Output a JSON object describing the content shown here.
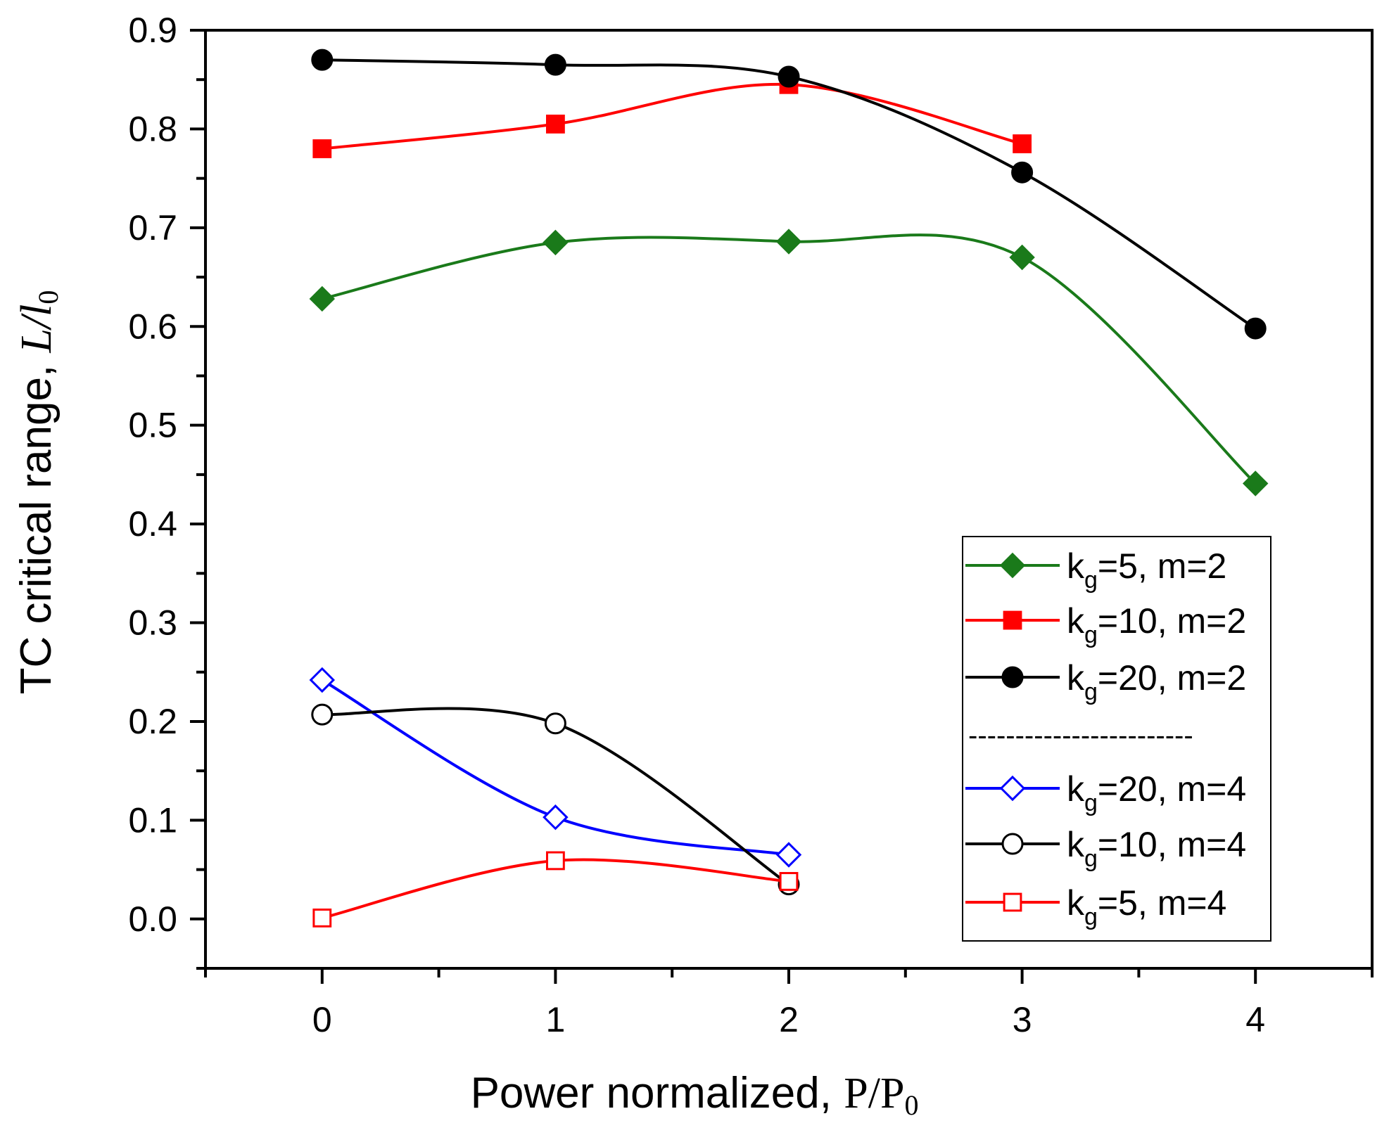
{
  "chart_data": {
    "type": "line",
    "xlabel_prefix": "Power normalized, ",
    "xlabel_var": "P/P",
    "xlabel_sub": "0",
    "ylabel_prefix": "TC critical range, ",
    "ylabel_var": "L/l",
    "ylabel_sub": "0",
    "xlim": [
      -0.5,
      4.5
    ],
    "ylim": [
      -0.05,
      0.9
    ],
    "xticks": [
      "0",
      "1",
      "2",
      "3",
      "4"
    ],
    "yticks": [
      "0.0",
      "0.1",
      "0.2",
      "0.3",
      "0.4",
      "0.5",
      "0.6",
      "0.7",
      "0.8",
      "0.9"
    ],
    "legend_position": "bottom-right",
    "legend_separator": "------------------------",
    "series": [
      {
        "name": "kg=5, m=2",
        "label_k": "k",
        "label_sub": "g",
        "label_rest": "=5, m=2",
        "color": "#1a7a1a",
        "marker": "diamond",
        "filled": true,
        "x": [
          0,
          1,
          2,
          3,
          4
        ],
        "y": [
          0.628,
          0.685,
          0.686,
          0.67,
          0.441
        ]
      },
      {
        "name": "kg=10, m=2",
        "label_k": "k",
        "label_sub": "g",
        "label_rest": "=10, m=2",
        "color": "#ff0000",
        "marker": "square",
        "filled": true,
        "x": [
          0,
          1,
          2,
          3
        ],
        "y": [
          0.78,
          0.805,
          0.845,
          0.785
        ]
      },
      {
        "name": "kg=20, m=2",
        "label_k": "k",
        "label_sub": "g",
        "label_rest": "=20, m=2",
        "color": "#000000",
        "marker": "circle",
        "filled": true,
        "x": [
          0,
          1,
          2,
          3,
          4
        ],
        "y": [
          0.87,
          0.865,
          0.853,
          0.756,
          0.598
        ]
      },
      {
        "name": "kg=20, m=4",
        "label_k": "k",
        "label_sub": "g",
        "label_rest": "=20, m=4",
        "color": "#0000ff",
        "marker": "diamond",
        "filled": false,
        "x": [
          0,
          1,
          2
        ],
        "y": [
          0.242,
          0.103,
          0.065
        ]
      },
      {
        "name": "kg=10, m=4",
        "label_k": "k",
        "label_sub": "g",
        "label_rest": "=10, m=4",
        "color": "#000000",
        "marker": "circle",
        "filled": false,
        "x": [
          0,
          1,
          2
        ],
        "y": [
          0.207,
          0.198,
          0.035
        ]
      },
      {
        "name": "kg=5, m=4",
        "label_k": "k",
        "label_sub": "g",
        "label_rest": "=5, m=4",
        "color": "#ff0000",
        "marker": "square",
        "filled": false,
        "x": [
          0,
          1,
          2
        ],
        "y": [
          0.001,
          0.059,
          0.038
        ]
      }
    ]
  }
}
